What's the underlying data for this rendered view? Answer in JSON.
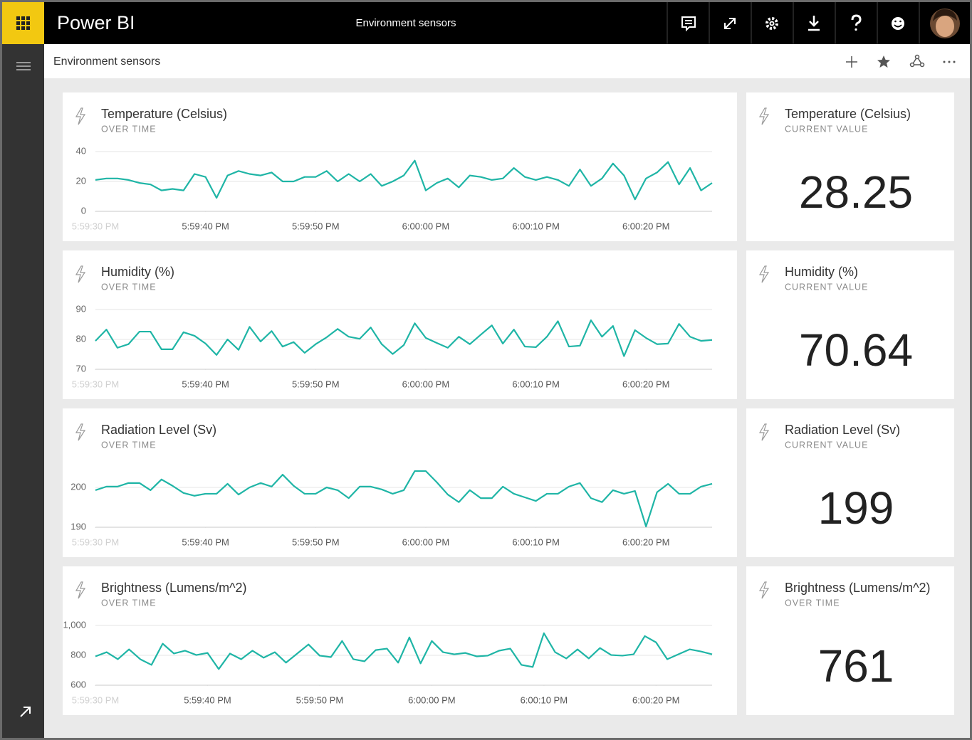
{
  "header": {
    "app_name": "Power BI",
    "title": "Environment sensors"
  },
  "toolbar": {
    "title": "Environment sensors"
  },
  "chart_data": [
    {
      "type": "line",
      "title": "Temperature (Celsius)",
      "subtitle": "OVER TIME",
      "color": "#1fb5a6",
      "grid": true,
      "x": [
        0,
        1,
        2,
        3,
        4,
        5,
        6,
        7,
        8,
        9,
        10,
        11,
        12,
        13,
        14,
        15,
        16,
        17,
        18,
        19,
        20,
        21,
        22,
        23,
        24,
        25,
        26,
        27,
        28,
        29,
        30,
        31,
        32,
        33,
        34,
        35,
        36,
        37,
        38,
        39,
        40,
        41,
        42,
        43,
        44,
        45,
        46,
        47,
        48,
        49,
        50,
        51,
        52,
        53,
        54,
        55,
        56
      ],
      "values": [
        21,
        22,
        22,
        21,
        19,
        18,
        14,
        15,
        14,
        25,
        23,
        9,
        24,
        27,
        25,
        24,
        26,
        20,
        20,
        23,
        23,
        27,
        20,
        25,
        20,
        25,
        17,
        20,
        24,
        34,
        14,
        19,
        22,
        16,
        24,
        23,
        21,
        22,
        29,
        23,
        21,
        23,
        21,
        17,
        28,
        17,
        22,
        32,
        24,
        8,
        22,
        26,
        33,
        18,
        29,
        14,
        19
      ],
      "xlim": [
        0,
        56
      ],
      "xticks": [
        {
          "value": 0,
          "label": "5:59:30 PM"
        },
        {
          "value": 10,
          "label": "5:59:40 PM"
        },
        {
          "value": 20,
          "label": "5:59:50 PM"
        },
        {
          "value": 30,
          "label": "6:00:00 PM"
        },
        {
          "value": 40,
          "label": "6:00:10 PM"
        },
        {
          "value": 50,
          "label": "6:00:20 PM"
        }
      ],
      "ylim": [
        0,
        40
      ],
      "yticks": [
        0,
        20,
        40
      ]
    },
    {
      "type": "line",
      "title": "Humidity (%)",
      "subtitle": "OVER TIME",
      "color": "#1fb5a6",
      "grid": true,
      "x": [
        0,
        1,
        2,
        3,
        4,
        5,
        6,
        7,
        8,
        9,
        10,
        11,
        12,
        13,
        14,
        15,
        16,
        17,
        18,
        19,
        20,
        21,
        22,
        23,
        24,
        25,
        26,
        27,
        28,
        29,
        30,
        31,
        32,
        33,
        34,
        35,
        36,
        37,
        38,
        39,
        40,
        41,
        42,
        43,
        44,
        45,
        46,
        47,
        48,
        49,
        50,
        51,
        52,
        53,
        54,
        55,
        56
      ],
      "values": [
        79.5,
        83.3,
        77.2,
        78.4,
        82.6,
        82.6,
        76.7,
        76.7,
        82.4,
        81.2,
        78.6,
        74.8,
        80,
        76.5,
        84.2,
        79.3,
        82.8,
        77.6,
        79.1,
        75.5,
        78.4,
        80.7,
        83.5,
        80.9,
        80.2,
        84,
        78.4,
        75.1,
        78.1,
        85.4,
        80.5,
        78.8,
        77.2,
        80.9,
        78.4,
        81.6,
        84.7,
        78.6,
        83.3,
        77.6,
        77.4,
        80.9,
        86.1,
        77.6,
        77.9,
        86.4,
        80.9,
        84.5,
        74.4,
        83.1,
        80.5,
        78.4,
        78.6,
        85.2,
        80.9,
        79.5,
        79.8
      ],
      "xlim": [
        0,
        56
      ],
      "xticks": [
        {
          "value": 0,
          "label": "5:59:30 PM"
        },
        {
          "value": 10,
          "label": "5:59:40 PM"
        },
        {
          "value": 20,
          "label": "5:59:50 PM"
        },
        {
          "value": 30,
          "label": "6:00:00 PM"
        },
        {
          "value": 40,
          "label": "6:00:10 PM"
        },
        {
          "value": 50,
          "label": "6:00:20 PM"
        }
      ],
      "ylim": [
        70,
        90
      ],
      "yticks": [
        70,
        80,
        90
      ]
    },
    {
      "type": "line",
      "title": "Radiation Level (Sv)",
      "subtitle": "OVER TIME",
      "color": "#1fb5a6",
      "grid": true,
      "x": [
        0,
        1,
        2,
        3,
        4,
        5,
        6,
        7,
        8,
        9,
        10,
        11,
        12,
        13,
        14,
        15,
        16,
        17,
        18,
        19,
        20,
        21,
        22,
        23,
        24,
        25,
        26,
        27,
        28,
        29,
        30,
        31,
        32,
        33,
        34,
        35,
        36,
        37,
        38,
        39,
        40,
        41,
        42,
        43,
        44,
        45,
        46,
        47,
        48,
        49,
        50,
        51,
        52,
        53,
        54,
        55,
        56
      ],
      "values": [
        199.3,
        200.2,
        200.2,
        201.1,
        201.1,
        199.3,
        202,
        200.4,
        198.6,
        197.9,
        198.4,
        198.4,
        200.9,
        198.2,
        200,
        201.1,
        200.2,
        203.2,
        200.4,
        198.4,
        198.4,
        200,
        199.3,
        197.3,
        200.2,
        200.2,
        199.5,
        198.4,
        199.3,
        204.1,
        204.1,
        201.3,
        198.2,
        196.3,
        199.3,
        197.3,
        197.3,
        200.2,
        198.4,
        197.5,
        196.6,
        198.4,
        198.4,
        200.2,
        201.1,
        197.3,
        196.3,
        199.3,
        198.4,
        199.1,
        190.2,
        198.8,
        200.9,
        198.4,
        198.4,
        200.2,
        200.9
      ],
      "xlim": [
        0,
        56
      ],
      "xticks": [
        {
          "value": 0,
          "label": "5:59:30 PM"
        },
        {
          "value": 10,
          "label": "5:59:40 PM"
        },
        {
          "value": 20,
          "label": "5:59:50 PM"
        },
        {
          "value": 30,
          "label": "6:00:00 PM"
        },
        {
          "value": 40,
          "label": "6:00:10 PM"
        },
        {
          "value": 50,
          "label": "6:00:20 PM"
        }
      ],
      "ylim": [
        190,
        205
      ],
      "yticks": [
        190,
        200
      ]
    },
    {
      "type": "line",
      "title": "Brightness (Lumens/m^2)",
      "subtitle": "OVER TIME",
      "color": "#1fb5a6",
      "grid": true,
      "x": [
        0,
        1,
        2,
        3,
        4,
        5,
        6,
        7,
        8,
        9,
        10,
        11,
        12,
        13,
        14,
        15,
        16,
        17,
        18,
        19,
        20,
        21,
        22,
        23,
        24,
        25,
        26,
        27,
        28,
        29,
        30,
        31,
        32,
        33,
        34,
        35,
        36,
        37,
        38,
        39,
        40,
        41,
        42,
        43,
        44,
        45,
        46,
        47,
        48,
        49,
        50,
        51,
        52,
        53,
        54,
        55
      ],
      "values": [
        793,
        821,
        774,
        840,
        774,
        736,
        878,
        812,
        831,
        802,
        816,
        708,
        812,
        774,
        831,
        784,
        821,
        751,
        812,
        873,
        798,
        788,
        896,
        774,
        760,
        835,
        845,
        751,
        920,
        746,
        896,
        821,
        807,
        816,
        793,
        798,
        831,
        845,
        736,
        722,
        948,
        821,
        779,
        840,
        779,
        849,
        802,
        798,
        807,
        929,
        887,
        774,
        807,
        840,
        826,
        807
      ],
      "xlim": [
        0,
        55
      ],
      "xticks": [
        {
          "value": 0,
          "label": "5:59:30 PM"
        },
        {
          "value": 10,
          "label": "5:59:40 PM"
        },
        {
          "value": 20,
          "label": "5:59:50 PM"
        },
        {
          "value": 30,
          "label": "6:00:00 PM"
        },
        {
          "value": 40,
          "label": "6:00:10 PM"
        },
        {
          "value": 50,
          "label": "6:00:20 PM"
        }
      ],
      "ylim": [
        600,
        1000
      ],
      "yticks": [
        600,
        800,
        {
          "value": 1000,
          "label": "1,000"
        }
      ]
    }
  ],
  "cards": [
    {
      "title": "Temperature (Celsius)",
      "subtitle": "CURRENT VALUE",
      "value": 28.25
    },
    {
      "title": "Humidity (%)",
      "subtitle": "CURRENT VALUE",
      "value": 70.64
    },
    {
      "title": "Radiation Level (Sv)",
      "subtitle": "CURRENT VALUE",
      "value": 199
    },
    {
      "title": "Brightness (Lumens/m^2)",
      "subtitle": "OVER TIME",
      "value": 761
    }
  ]
}
